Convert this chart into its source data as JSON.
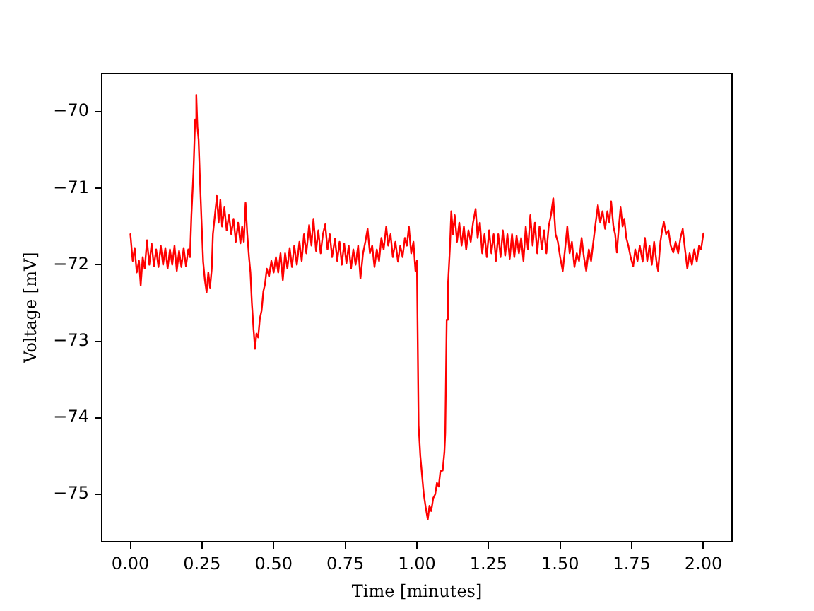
{
  "chart_data": {
    "type": "line",
    "xlabel": "Time [minutes]",
    "ylabel": "Voltage [mV]",
    "x": [
      0.0,
      0.008,
      0.015,
      0.022,
      0.03,
      0.036,
      0.043,
      0.05,
      0.058,
      0.066,
      0.074,
      0.082,
      0.09,
      0.098,
      0.106,
      0.114,
      0.122,
      0.13,
      0.138,
      0.146,
      0.154,
      0.162,
      0.17,
      0.178,
      0.186,
      0.194,
      0.202,
      0.208,
      0.213,
      0.22,
      0.226,
      0.23,
      0.234,
      0.238,
      0.243,
      0.248,
      0.254,
      0.26,
      0.266,
      0.272,
      0.278,
      0.284,
      0.288,
      0.295,
      0.302,
      0.308,
      0.314,
      0.32,
      0.328,
      0.336,
      0.344,
      0.352,
      0.36,
      0.368,
      0.376,
      0.384,
      0.39,
      0.396,
      0.402,
      0.408,
      0.414,
      0.419,
      0.424,
      0.43,
      0.435,
      0.44,
      0.446,
      0.452,
      0.458,
      0.464,
      0.47,
      0.476,
      0.484,
      0.492,
      0.5,
      0.508,
      0.516,
      0.524,
      0.532,
      0.54,
      0.548,
      0.556,
      0.564,
      0.572,
      0.581,
      0.59,
      0.598,
      0.606,
      0.614,
      0.624,
      0.632,
      0.639,
      0.648,
      0.656,
      0.664,
      0.672,
      0.68,
      0.688,
      0.696,
      0.704,
      0.714,
      0.722,
      0.73,
      0.738,
      0.746,
      0.754,
      0.762,
      0.77,
      0.778,
      0.786,
      0.795,
      0.803,
      0.812,
      0.82,
      0.828,
      0.836,
      0.844,
      0.852,
      0.86,
      0.868,
      0.876,
      0.884,
      0.893,
      0.9,
      0.908,
      0.916,
      0.925,
      0.934,
      0.942,
      0.95,
      0.958,
      0.965,
      0.972,
      0.98,
      0.988,
      0.995,
      1.0,
      1.006,
      1.012,
      1.018,
      1.024,
      1.032,
      1.038,
      1.044,
      1.05,
      1.057,
      1.064,
      1.07,
      1.076,
      1.082,
      1.09,
      1.096,
      1.099,
      1.104,
      1.108,
      1.115,
      1.12,
      1.126,
      1.132,
      1.14,
      1.148,
      1.156,
      1.164,
      1.172,
      1.18,
      1.188,
      1.196,
      1.205,
      1.212,
      1.22,
      1.228,
      1.236,
      1.244,
      1.252,
      1.26,
      1.268,
      1.276,
      1.284,
      1.292,
      1.3,
      1.308,
      1.316,
      1.324,
      1.332,
      1.34,
      1.348,
      1.356,
      1.364,
      1.372,
      1.38,
      1.388,
      1.396,
      1.404,
      1.412,
      1.42,
      1.428,
      1.436,
      1.444,
      1.452,
      1.46,
      1.468,
      1.476,
      1.484,
      1.492,
      1.5,
      1.509,
      1.517,
      1.525,
      1.533,
      1.541,
      1.55,
      1.558,
      1.566,
      1.575,
      1.583,
      1.591,
      1.6,
      1.608,
      1.616,
      1.624,
      1.632,
      1.64,
      1.648,
      1.657,
      1.665,
      1.672,
      1.678,
      1.686,
      1.692,
      1.698,
      1.705,
      1.711,
      1.718,
      1.724,
      1.731,
      1.738,
      1.746,
      1.755,
      1.762,
      1.77,
      1.778,
      1.788,
      1.796,
      1.804,
      1.812,
      1.82,
      1.828,
      1.836,
      1.842,
      1.85,
      1.856,
      1.862,
      1.87,
      1.878,
      1.886,
      1.895,
      1.903,
      1.912,
      1.92,
      1.928,
      1.936,
      1.944,
      1.952,
      1.96,
      1.968,
      1.977,
      1.985,
      1.992,
      2.0
    ],
    "series": [
      {
        "color": "#ff0000",
        "values": [
          -71.6,
          -71.95,
          -71.78,
          -72.1,
          -71.95,
          -72.27,
          -71.9,
          -72.05,
          -71.68,
          -72.0,
          -71.72,
          -72.02,
          -71.8,
          -72.03,
          -71.75,
          -72.0,
          -71.78,
          -72.05,
          -71.8,
          -72.0,
          -71.75,
          -72.08,
          -71.82,
          -72.03,
          -71.78,
          -72.02,
          -71.8,
          -71.9,
          -71.35,
          -70.8,
          -70.1,
          -69.78,
          -70.2,
          -70.36,
          -70.9,
          -71.4,
          -71.96,
          -72.2,
          -72.36,
          -72.1,
          -72.3,
          -72.05,
          -71.6,
          -71.35,
          -71.1,
          -71.45,
          -71.15,
          -71.5,
          -71.25,
          -71.55,
          -71.35,
          -71.6,
          -71.4,
          -71.7,
          -71.45,
          -71.72,
          -71.5,
          -71.7,
          -71.19,
          -71.6,
          -71.9,
          -72.1,
          -72.5,
          -72.85,
          -73.1,
          -72.9,
          -72.95,
          -72.7,
          -72.6,
          -72.35,
          -72.25,
          -72.05,
          -72.15,
          -71.95,
          -72.1,
          -71.9,
          -72.1,
          -71.85,
          -72.2,
          -71.85,
          -72.05,
          -71.78,
          -72.03,
          -71.75,
          -72.0,
          -71.7,
          -71.95,
          -71.6,
          -71.85,
          -71.48,
          -71.75,
          -71.4,
          -71.82,
          -71.55,
          -71.85,
          -71.6,
          -71.47,
          -71.8,
          -71.6,
          -71.9,
          -71.66,
          -71.95,
          -71.7,
          -72.0,
          -71.72,
          -71.98,
          -71.75,
          -72.05,
          -71.8,
          -72.0,
          -71.75,
          -72.18,
          -71.85,
          -71.7,
          -71.53,
          -71.85,
          -71.75,
          -72.03,
          -71.8,
          -71.95,
          -71.65,
          -71.8,
          -71.5,
          -71.75,
          -71.6,
          -71.9,
          -71.7,
          -71.96,
          -71.75,
          -71.9,
          -71.65,
          -71.75,
          -71.5,
          -71.85,
          -71.7,
          -72.08,
          -71.95,
          -74.1,
          -74.5,
          -74.75,
          -75.0,
          -75.2,
          -75.33,
          -75.15,
          -75.22,
          -75.05,
          -75.0,
          -74.85,
          -74.9,
          -74.7,
          -74.69,
          -74.45,
          -74.2,
          -72.72,
          -72.3,
          -71.8,
          -71.3,
          -71.6,
          -71.35,
          -71.7,
          -71.45,
          -71.75,
          -71.5,
          -71.8,
          -71.55,
          -71.7,
          -71.45,
          -71.27,
          -71.65,
          -71.45,
          -71.85,
          -71.6,
          -71.9,
          -71.55,
          -71.85,
          -71.6,
          -71.95,
          -71.6,
          -71.9,
          -71.55,
          -71.88,
          -71.6,
          -71.92,
          -71.6,
          -71.9,
          -71.62,
          -71.85,
          -71.65,
          -71.95,
          -71.5,
          -71.8,
          -71.35,
          -71.75,
          -71.45,
          -71.85,
          -71.5,
          -71.8,
          -71.55,
          -71.85,
          -71.5,
          -71.35,
          -71.13,
          -71.6,
          -71.7,
          -71.9,
          -72.08,
          -71.8,
          -71.5,
          -71.85,
          -71.7,
          -72.03,
          -71.85,
          -71.95,
          -71.65,
          -71.9,
          -72.08,
          -71.8,
          -71.95,
          -71.7,
          -71.45,
          -71.22,
          -71.45,
          -71.3,
          -71.53,
          -71.3,
          -71.45,
          -71.17,
          -71.5,
          -71.6,
          -71.84,
          -71.5,
          -71.25,
          -71.5,
          -71.4,
          -71.65,
          -71.75,
          -71.9,
          -72.02,
          -71.8,
          -71.95,
          -71.75,
          -71.96,
          -71.65,
          -71.95,
          -71.75,
          -72.0,
          -71.7,
          -71.95,
          -72.08,
          -71.7,
          -71.55,
          -71.44,
          -71.6,
          -71.55,
          -71.75,
          -71.84,
          -71.7,
          -71.85,
          -71.65,
          -71.53,
          -71.8,
          -72.05,
          -71.85,
          -72.0,
          -71.8,
          -71.96,
          -71.75,
          -71.8,
          -71.59
        ]
      }
    ],
    "xlim": [
      -0.1,
      2.1
    ],
    "ylim": [
      -75.62,
      -69.5
    ],
    "xticks": [
      {
        "value": 0,
        "label": "0.00"
      },
      {
        "value": 0.25,
        "label": "0.25"
      },
      {
        "value": 0.5,
        "label": "0.50"
      },
      {
        "value": 0.75,
        "label": "0.75"
      },
      {
        "value": 1,
        "label": "1.00"
      },
      {
        "value": 1.25,
        "label": "1.25"
      },
      {
        "value": 1.5,
        "label": "1.50"
      },
      {
        "value": 1.75,
        "label": "1.75"
      },
      {
        "value": 2,
        "label": "2.00"
      }
    ],
    "yticks": [
      {
        "value": -75,
        "label": "−75"
      },
      {
        "value": -74,
        "label": "−74"
      },
      {
        "value": -73,
        "label": "−73"
      },
      {
        "value": -72,
        "label": "−72"
      },
      {
        "value": -71,
        "label": "−71"
      },
      {
        "value": -70,
        "label": "−70"
      }
    ],
    "marker": "none"
  }
}
